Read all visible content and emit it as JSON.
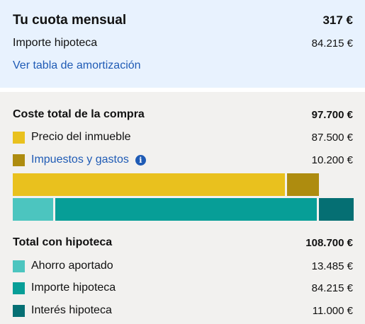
{
  "cuota": {
    "title": "Tu cuota mensual",
    "amount": "317 €",
    "importe_label": "Importe hipoteca",
    "importe_value": "84.215 €",
    "link": "Ver tabla de amortización"
  },
  "compra": {
    "title": "Coste total de la compra",
    "total": "97.700 €",
    "items": [
      {
        "label": "Precio del inmueble",
        "value": "87.500 €",
        "color": "#e9c11e",
        "amount": 87500
      },
      {
        "label": "Impuestos y gastos",
        "value": "10.200 €",
        "color": "#ae8c0f",
        "amount": 10200
      }
    ]
  },
  "hipoteca": {
    "title": "Total con hipoteca",
    "total": "108.700 €",
    "items": [
      {
        "label": "Ahorro aportado",
        "value": "13.485 €",
        "color": "#4cc5bf",
        "amount": 13485
      },
      {
        "label": "Importe hipoteca",
        "value": "84.215 €",
        "color": "#079e97",
        "amount": 84215
      },
      {
        "label": "Interés hipoteca",
        "value": "11.000 €",
        "color": "#056f73",
        "amount": 11000
      }
    ]
  },
  "icons": {
    "info": "info-icon",
    "info_glyph": "i"
  }
}
